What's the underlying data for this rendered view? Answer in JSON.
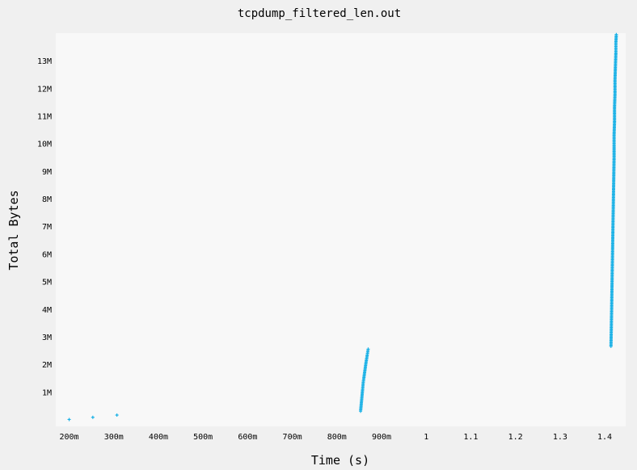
{
  "chart_data": {
    "type": "scatter",
    "title": "tcpdump_filtered_len.out",
    "xlabel": "Time (s)",
    "ylabel": "Total Bytes",
    "xlim": [
      0.17,
      1.447
    ],
    "ylim": [
      -250000,
      14000000
    ],
    "x_ticks": [
      {
        "value": 0.2,
        "label": "200m"
      },
      {
        "value": 0.3,
        "label": "300m"
      },
      {
        "value": 0.4,
        "label": "400m"
      },
      {
        "value": 0.5,
        "label": "500m"
      },
      {
        "value": 0.6,
        "label": "600m"
      },
      {
        "value": 0.7,
        "label": "700m"
      },
      {
        "value": 0.8,
        "label": "800m"
      },
      {
        "value": 0.9,
        "label": "900m"
      },
      {
        "value": 1.0,
        "label": "1"
      },
      {
        "value": 1.1,
        "label": "1.1"
      },
      {
        "value": 1.2,
        "label": "1.2"
      },
      {
        "value": 1.3,
        "label": "1.3"
      },
      {
        "value": 1.4,
        "label": "1.4"
      }
    ],
    "y_ticks": [
      {
        "value": 1000000,
        "label": "1M"
      },
      {
        "value": 2000000,
        "label": "2M"
      },
      {
        "value": 3000000,
        "label": "3M"
      },
      {
        "value": 4000000,
        "label": "4M"
      },
      {
        "value": 5000000,
        "label": "5M"
      },
      {
        "value": 6000000,
        "label": "6M"
      },
      {
        "value": 7000000,
        "label": "7M"
      },
      {
        "value": 8000000,
        "label": "8M"
      },
      {
        "value": 9000000,
        "label": "9M"
      },
      {
        "value": 10000000,
        "label": "10M"
      },
      {
        "value": 11000000,
        "label": "11M"
      },
      {
        "value": 12000000,
        "label": "12M"
      },
      {
        "value": 13000000,
        "label": "13M"
      }
    ],
    "grid": false,
    "marker": "+",
    "series": [
      {
        "color": "#1ab1e6",
        "points": [
          {
            "x": 0.2,
            "y": 0
          },
          {
            "x": 0.253,
            "y": 80000
          },
          {
            "x": 0.307,
            "y": 160000
          },
          {
            "x": 0.853,
            "y": 300000
          },
          {
            "x": 0.855,
            "y": 650000
          },
          {
            "x": 0.857,
            "y": 1000000
          },
          {
            "x": 0.859,
            "y": 1350000
          },
          {
            "x": 0.862,
            "y": 1700000
          },
          {
            "x": 0.865,
            "y": 2050000
          },
          {
            "x": 0.868,
            "y": 2350000
          },
          {
            "x": 0.87,
            "y": 2550000
          },
          {
            "x": 1.414,
            "y": 2650000
          },
          {
            "x": 1.415,
            "y": 3500000
          },
          {
            "x": 1.416,
            "y": 4500000
          },
          {
            "x": 1.417,
            "y": 5500000
          },
          {
            "x": 1.418,
            "y": 6500000
          },
          {
            "x": 1.419,
            "y": 7500000
          },
          {
            "x": 1.42,
            "y": 8500000
          },
          {
            "x": 1.421,
            "y": 9500000
          },
          {
            "x": 1.421,
            "y": 10300000
          },
          {
            "x": 1.422,
            "y": 10800000
          },
          {
            "x": 1.422,
            "y": 11300000
          },
          {
            "x": 1.423,
            "y": 11800000
          },
          {
            "x": 1.423,
            "y": 12300000
          },
          {
            "x": 1.424,
            "y": 12800000
          },
          {
            "x": 1.425,
            "y": 13300000
          },
          {
            "x": 1.425,
            "y": 13650000
          },
          {
            "x": 1.426,
            "y": 13950000
          }
        ]
      }
    ]
  }
}
